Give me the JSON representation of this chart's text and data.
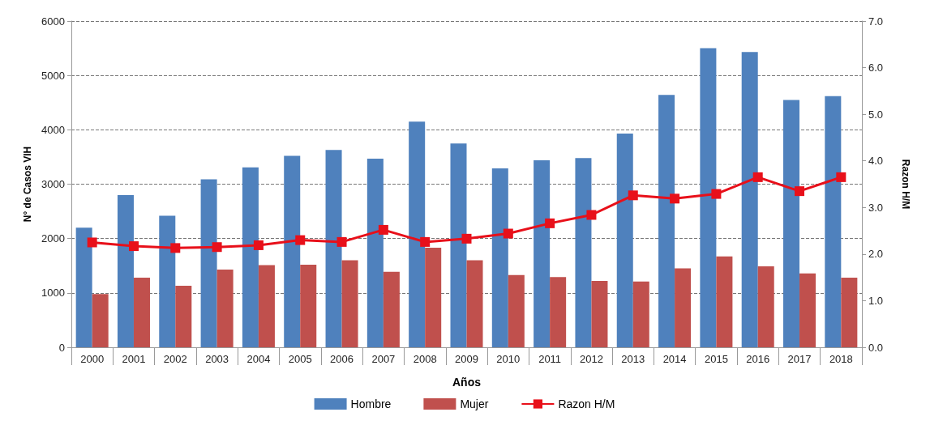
{
  "chart_data": {
    "type": "bar",
    "xlabel": "Años",
    "ylabel": "N° de Casos VIH",
    "y2label": "Razon H/M",
    "categories": [
      "2000",
      "2001",
      "2002",
      "2003",
      "2004",
      "2005",
      "2006",
      "2007",
      "2008",
      "2009",
      "2010",
      "2011",
      "2012",
      "2013",
      "2014",
      "2015",
      "2016",
      "2017",
      "2018"
    ],
    "series": [
      {
        "name": "Hombre",
        "color": "#4f81bd",
        "values": [
          2200,
          2800,
          2420,
          3090,
          3310,
          3520,
          3630,
          3470,
          4150,
          3750,
          3290,
          3440,
          3480,
          3930,
          4640,
          5500,
          5430,
          4550,
          4620
        ]
      },
      {
        "name": "Mujer",
        "color": "#c0504d",
        "values": [
          980,
          1280,
          1130,
          1430,
          1510,
          1520,
          1600,
          1390,
          1830,
          1600,
          1330,
          1290,
          1220,
          1210,
          1450,
          1670,
          1490,
          1360,
          1280
        ]
      },
      {
        "name": "Razon H/M",
        "type": "line",
        "axis": "y2",
        "color": "#e8101a",
        "marker": "square",
        "values": [
          2.25,
          2.17,
          2.13,
          2.15,
          2.19,
          2.3,
          2.26,
          2.52,
          2.26,
          2.33,
          2.44,
          2.66,
          2.84,
          3.26,
          3.19,
          3.29,
          3.65,
          3.35,
          3.65
        ]
      }
    ],
    "ylim": [
      0,
      6000
    ],
    "yticks": [
      0,
      1000,
      2000,
      3000,
      4000,
      5000,
      6000
    ],
    "y2lim": [
      0,
      7
    ],
    "y2ticks": [
      {
        "value": 0,
        "label": "0.0"
      },
      {
        "value": 1,
        "label": "1.0"
      },
      {
        "value": 2,
        "label": "2.0"
      },
      {
        "value": 3,
        "label": "3.0"
      },
      {
        "value": 4,
        "label": "4.0"
      },
      {
        "value": 5,
        "label": "5.0"
      },
      {
        "value": 6,
        "label": "6.0"
      },
      {
        "value": 7,
        "label": "7.0"
      }
    ],
    "grid": "y",
    "legend": "bottom"
  }
}
